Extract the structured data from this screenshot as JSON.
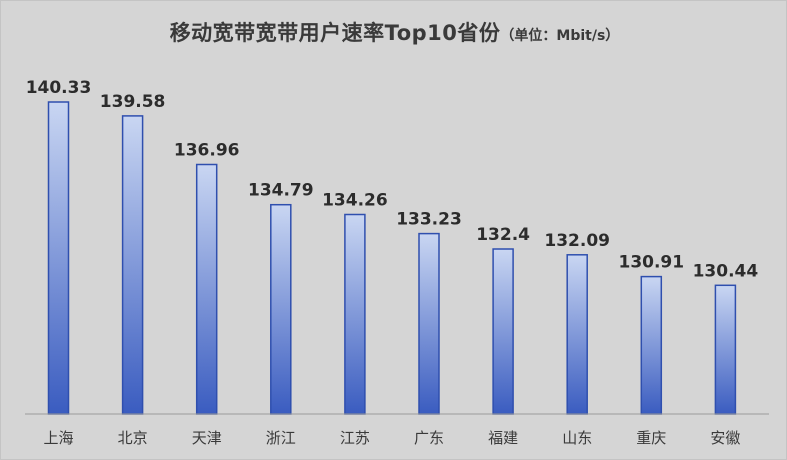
{
  "chart_data": {
    "type": "bar",
    "title": "移动宽带宽带用户速率Top10省份",
    "unit_note": "（单位：Mbit/s）",
    "categories": [
      "上海",
      "北京",
      "天津",
      "浙江",
      "江苏",
      "广东",
      "福建",
      "山东",
      "重庆",
      "安徽"
    ],
    "values": [
      140.33,
      139.58,
      136.96,
      134.79,
      134.26,
      133.23,
      132.4,
      132.09,
      130.91,
      130.44
    ],
    "value_labels": [
      "140.33",
      "139.58",
      "136.96",
      "134.79",
      "134.26",
      "133.23",
      "132.4",
      "132.09",
      "130.91",
      "130.44"
    ],
    "ylim": [
      123.5,
      140.33
    ],
    "grid": false,
    "legend": "none",
    "bar_gradient": {
      "top": "#c9d6f2",
      "bottom": "#3a5cc0"
    },
    "bar_outline": "#2f4fae",
    "axis_color": "#9a9a9a"
  }
}
